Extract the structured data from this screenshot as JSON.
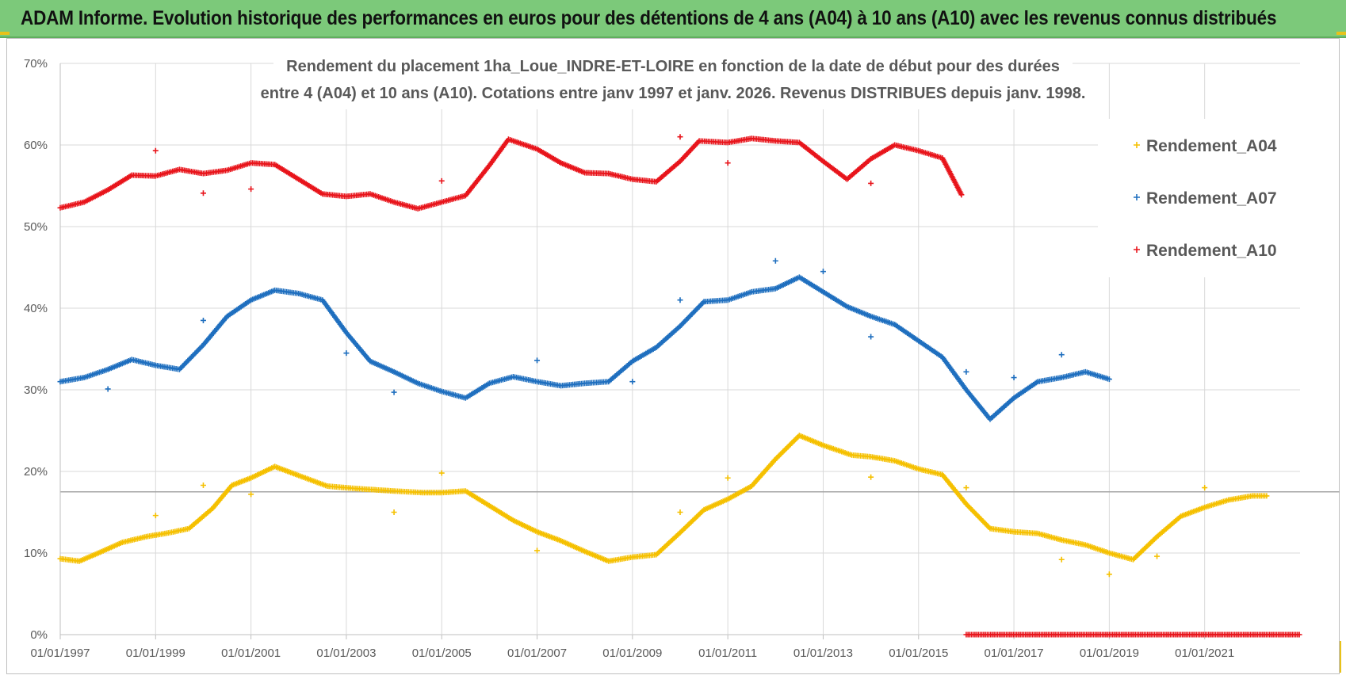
{
  "header": {
    "title": "ADAM Informe. Evolution historique des performances en euros pour des détentions de 4 ans (A04) à 10 ans (A10) avec les revenus connus distribués"
  },
  "chart_data": {
    "type": "scatter",
    "title_line1": "Rendement du placement 1ha_Loue_INDRE-ET-LOIRE en fonction de la date de début pour des durées",
    "title_line2": "entre 4 (A04) et 10 ans (A10). Cotations entre janv 1997 et janv. 2026. Revenus DISTRIBUES depuis janv. 1998.",
    "xlabel": "",
    "ylabel": "",
    "xlim": [
      1997.0,
      2023.0
    ],
    "ylim": [
      0,
      70
    ],
    "y_ticks": [
      "0%",
      "10%",
      "20%",
      "30%",
      "40%",
      "50%",
      "60%",
      "70%"
    ],
    "x_ticks": [
      "01/01/1997",
      "01/01/1999",
      "01/01/2001",
      "01/01/2003",
      "01/01/2005",
      "01/01/2007",
      "01/01/2009",
      "01/01/2011",
      "01/01/2013",
      "01/01/2015",
      "01/01/2017",
      "01/01/2019",
      "01/01/2021"
    ],
    "x_tick_years": [
      1997,
      1999,
      2001,
      2003,
      2005,
      2007,
      2009,
      2011,
      2013,
      2015,
      2017,
      2019,
      2021
    ],
    "reference_line_y": 17.5,
    "legend_position": "right",
    "series": [
      {
        "name": "Rendement_A04",
        "color": "#f5c000",
        "x": [
          1997.0,
          1997.4,
          1997.8,
          1998.3,
          1998.8,
          1999.3,
          1999.7,
          2000.2,
          2000.6,
          2001.0,
          2001.5,
          2002.0,
          2002.6,
          2003.2,
          2004.0,
          2004.6,
          2005.0,
          2005.5,
          2006.0,
          2006.5,
          2007.0,
          2007.5,
          2008.0,
          2008.5,
          2009.0,
          2009.5,
          2010.0,
          2010.5,
          2011.0,
          2011.5,
          2012.0,
          2012.5,
          2013.0,
          2013.6,
          2014.0,
          2014.5,
          2015.0,
          2015.5,
          2016.0,
          2016.5,
          2017.0,
          2017.5,
          2018.0,
          2018.5,
          2019.0,
          2019.5,
          2020.0,
          2020.5,
          2021.0,
          2021.5,
          2022.0,
          2022.3
        ],
        "y": [
          9.3,
          9.0,
          10.0,
          11.3,
          12.0,
          12.5,
          13.0,
          15.5,
          18.3,
          19.2,
          20.6,
          19.5,
          18.2,
          17.9,
          17.6,
          17.4,
          17.4,
          17.6,
          15.8,
          14.0,
          12.6,
          11.5,
          10.2,
          9.0,
          9.5,
          9.8,
          12.5,
          15.3,
          16.6,
          18.2,
          21.5,
          24.4,
          23.2,
          22.0,
          21.8,
          21.3,
          20.3,
          19.6,
          16.0,
          13.0,
          12.6,
          12.4,
          11.6,
          11.0,
          10.0,
          9.2,
          12.0,
          14.5,
          15.6,
          16.5,
          17.0,
          17.0
        ]
      },
      {
        "name": "Rendement_A07",
        "color": "#1f6fbf",
        "x": [
          1997.0,
          1997.5,
          1998.0,
          1998.5,
          1999.0,
          1999.5,
          2000.0,
          2000.5,
          2001.0,
          2001.5,
          2002.0,
          2002.5,
          2003.0,
          2003.5,
          2004.0,
          2004.5,
          2005.0,
          2005.5,
          2006.0,
          2006.5,
          2007.0,
          2007.5,
          2008.0,
          2008.5,
          2009.0,
          2009.5,
          2010.0,
          2010.5,
          2011.0,
          2011.5,
          2012.0,
          2012.5,
          2013.0,
          2013.5,
          2014.0,
          2014.5,
          2015.0,
          2015.5,
          2016.0,
          2016.5,
          2017.0,
          2017.5,
          2018.0,
          2018.5,
          2019.0
        ],
        "y": [
          31.0,
          31.5,
          32.5,
          33.7,
          33.0,
          32.5,
          35.5,
          39.0,
          41.0,
          42.2,
          41.8,
          41.0,
          37.0,
          33.5,
          32.2,
          30.8,
          29.8,
          29.0,
          30.8,
          31.6,
          31.0,
          30.5,
          30.8,
          31.0,
          33.5,
          35.2,
          37.8,
          40.8,
          41.0,
          42.0,
          42.4,
          43.8,
          42.0,
          40.2,
          39.0,
          38.0,
          36.0,
          34.0,
          30.0,
          26.4,
          29.0,
          31.0,
          31.5,
          32.2,
          31.3
        ]
      },
      {
        "name": "Rendement_A10",
        "color": "#e8141b",
        "x": [
          1997.0,
          1997.5,
          1998.0,
          1998.5,
          1999.0,
          1999.5,
          2000.0,
          2000.5,
          2001.0,
          2001.5,
          2002.0,
          2002.5,
          2003.0,
          2003.5,
          2004.0,
          2004.5,
          2005.0,
          2005.5,
          2006.0,
          2006.4,
          2007.0,
          2007.5,
          2008.0,
          2008.5,
          2009.0,
          2009.5,
          2010.0,
          2010.4,
          2011.0,
          2011.5,
          2012.0,
          2012.5,
          2013.0,
          2013.5,
          2014.0,
          2014.5,
          2015.0,
          2015.5,
          2015.9
        ],
        "y": [
          52.3,
          53.0,
          54.5,
          56.3,
          56.2,
          57.0,
          56.5,
          56.9,
          57.8,
          57.6,
          55.8,
          54.0,
          53.7,
          54.0,
          53.0,
          52.2,
          53.0,
          53.8,
          57.5,
          60.7,
          59.5,
          57.8,
          56.6,
          56.5,
          55.8,
          55.5,
          58.0,
          60.5,
          60.3,
          60.8,
          60.5,
          60.3,
          58.0,
          55.8,
          58.3,
          60.0,
          59.3,
          58.4,
          53.9
        ]
      }
    ],
    "series_outliers": [
      {
        "name": "Rendement_A04",
        "points": [
          [
            2000.0,
            18.3
          ],
          [
            2001.0,
            17.2
          ],
          [
            1999.0,
            14.6
          ],
          [
            2004.0,
            15.0
          ],
          [
            2005.0,
            19.8
          ],
          [
            2007.0,
            10.3
          ],
          [
            2010.0,
            15.0
          ],
          [
            2011.0,
            19.2
          ],
          [
            2014.0,
            19.3
          ],
          [
            2016.0,
            18.0
          ],
          [
            2018.0,
            9.2
          ],
          [
            2019.0,
            7.4
          ],
          [
            2020.0,
            9.6
          ],
          [
            2021.0,
            18.0
          ]
        ]
      },
      {
        "name": "Rendement_A07",
        "points": [
          [
            1998.0,
            30.1
          ],
          [
            2000.0,
            38.5
          ],
          [
            2003.0,
            34.5
          ],
          [
            2004.0,
            29.7
          ],
          [
            2007.0,
            33.6
          ],
          [
            2009.0,
            31.0
          ],
          [
            2010.0,
            41.0
          ],
          [
            2012.0,
            45.8
          ],
          [
            2013.0,
            44.5
          ],
          [
            2014.0,
            36.5
          ],
          [
            2016.0,
            32.2
          ],
          [
            2017.0,
            31.5
          ],
          [
            2018.0,
            34.3
          ]
        ]
      },
      {
        "name": "Rendement_A10",
        "points": [
          [
            1999.0,
            59.3
          ],
          [
            2000.0,
            54.1
          ],
          [
            2001.0,
            54.6
          ],
          [
            2005.0,
            55.6
          ],
          [
            2010.0,
            61.0
          ],
          [
            2011.0,
            57.8
          ],
          [
            2014.0,
            55.3
          ]
        ]
      }
    ],
    "zero_segment": {
      "name": "Rendement_A10",
      "x_start": 2016.0,
      "x_end": 2023.0,
      "y": 0
    }
  }
}
